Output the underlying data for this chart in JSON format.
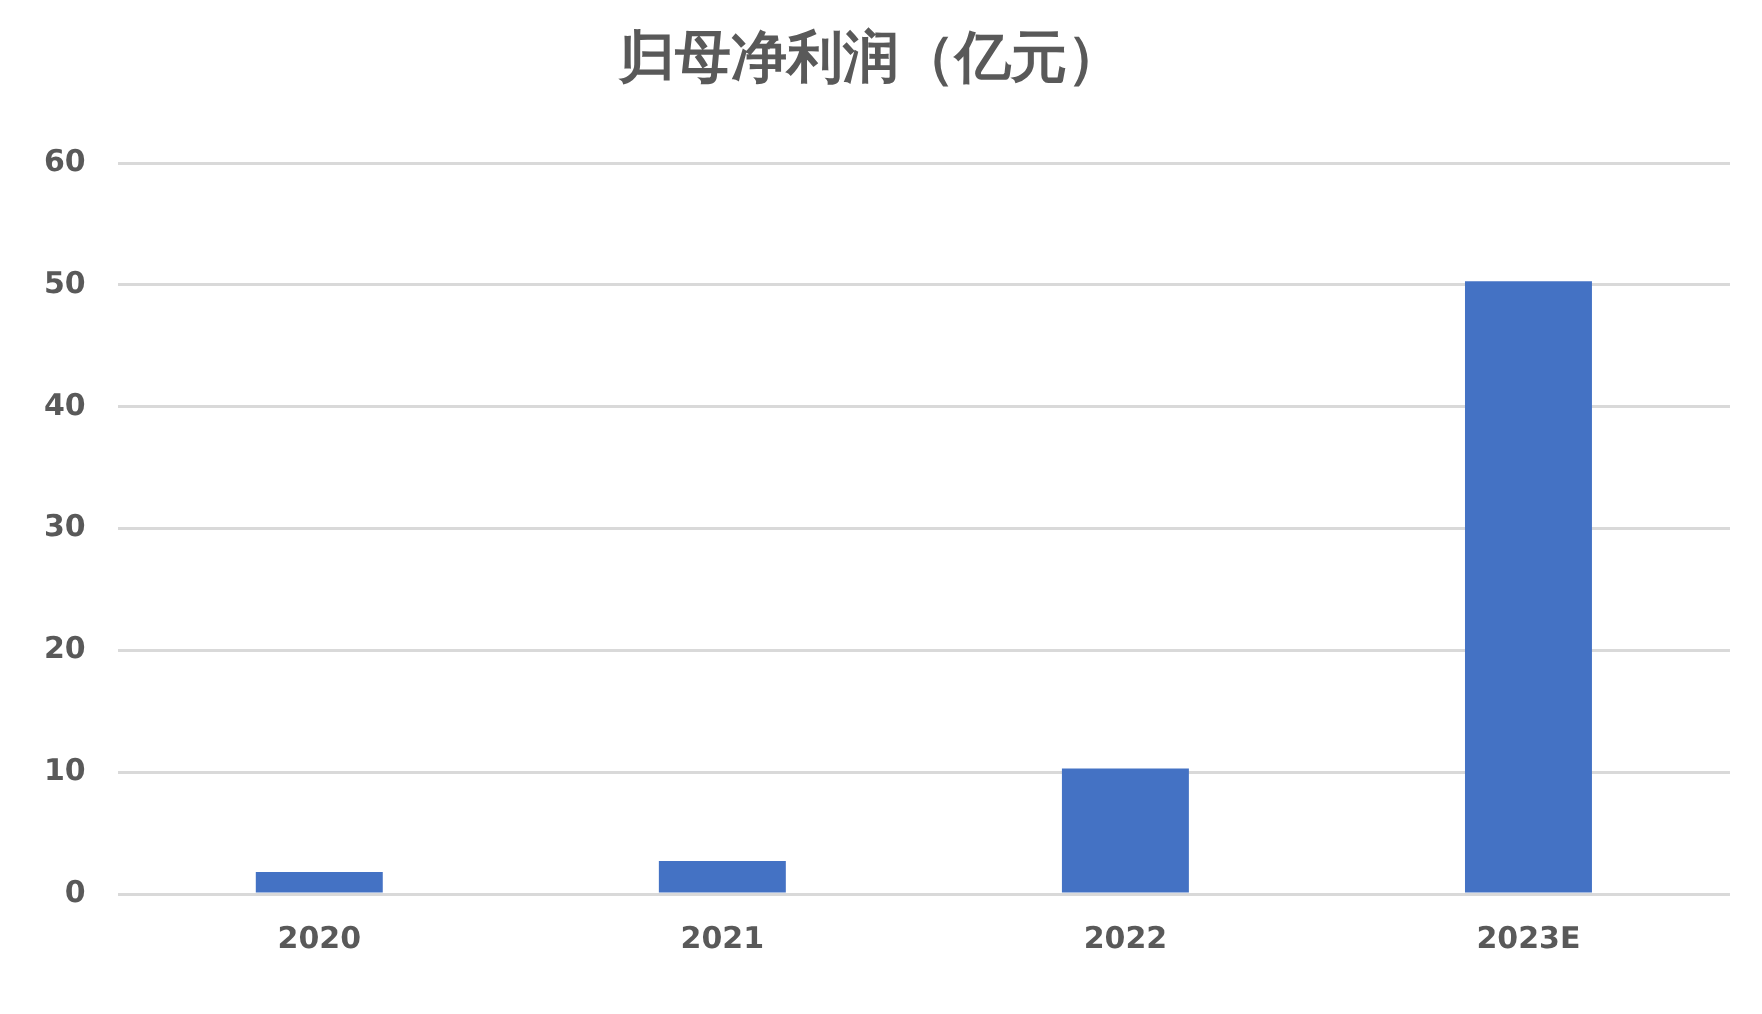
{
  "chart_data": {
    "type": "bar",
    "title": "归母净利润（亿元）",
    "categories": [
      "2020",
      "2021",
      "2022",
      "2023E"
    ],
    "values": [
      1.8,
      2.7,
      10.3,
      50.3
    ],
    "color": "#4472c4",
    "ylim": [
      0,
      60
    ],
    "yticks": [
      0,
      10,
      20,
      30,
      40,
      50,
      60
    ],
    "grid": "y",
    "legend": false
  }
}
